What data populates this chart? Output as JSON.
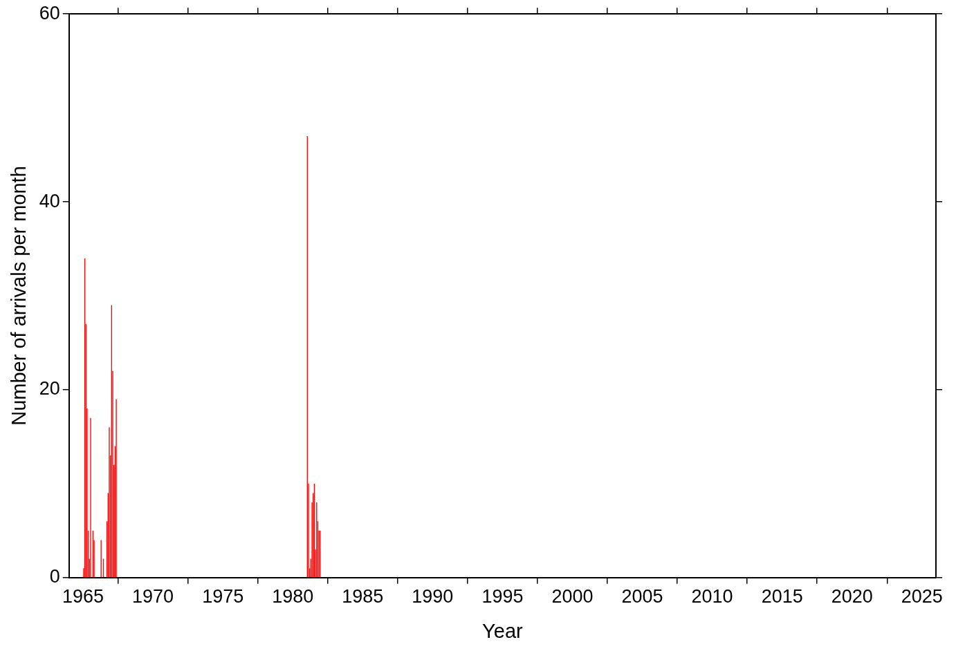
{
  "chart_data": {
    "type": "histogram",
    "xlabel": "Year",
    "ylabel": "Number of arrivals per month",
    "color": "#ff0000",
    "bins": [
      1965.0,
      1965.0833,
      1965.1667,
      1965.25,
      1965.3333,
      1965.4167,
      1965.5,
      1965.5833,
      1965.6667,
      1965.75,
      1965.8333,
      1966.25,
      1966.3333,
      1966.4167,
      1966.5,
      1966.6667,
      1966.75,
      1966.8333,
      1966.9167,
      1967.0,
      1967.0833,
      1967.1667,
      1967.25,
      1967.3333,
      1967.4167,
      1981.0,
      1981.0833,
      1981.1667,
      1981.25,
      1981.3333,
      1981.4167,
      1981.5,
      1981.5833,
      1981.6667,
      1981.75,
      1981.8333,
      1981.9167,
      1982.0
    ],
    "values": [
      1,
      34,
      27,
      18,
      5,
      2,
      17,
      0,
      5,
      4,
      0,
      4,
      0,
      2,
      0,
      6,
      9,
      16,
      13,
      29,
      22,
      12,
      14,
      19,
      0,
      47,
      10,
      1,
      2,
      8,
      9,
      10,
      3,
      8,
      6,
      5,
      5
    ],
    "xlim": [
      1964,
      2026
    ],
    "xticks": [
      1965,
      1970,
      1975,
      1980,
      1985,
      1990,
      1995,
      2000,
      2005,
      2010,
      2015,
      2020,
      2025
    ],
    "ylim": [
      0,
      60
    ],
    "yticks": [
      0,
      20,
      40,
      60
    ]
  }
}
